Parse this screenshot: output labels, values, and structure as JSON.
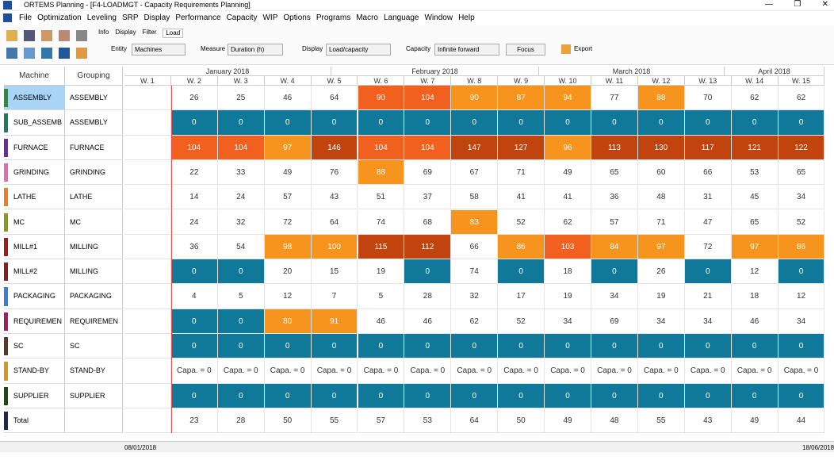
{
  "window": {
    "title": "ORTEMS  Planning - [F4-LOADMGT - Capacity Requirements Planning]"
  },
  "menu": [
    "File",
    "Optimization",
    "Leveling",
    "SRP",
    "Display",
    "Performance",
    "Capacity",
    "WIP",
    "Options",
    "Programs",
    "Macro",
    "Language",
    "Window",
    "Help"
  ],
  "tabs": [
    "Info",
    "Display",
    "Filter",
    "Load"
  ],
  "controls": {
    "entity_label": "Entity",
    "entity": "Machines",
    "measure_label": "Measure",
    "measure": "Duration (h)",
    "display_label": "Display",
    "display": "Load/capacity",
    "capacity_label": "Capacity",
    "capacity": "Infinite forward",
    "focus": "Focus",
    "export": "Export"
  },
  "grid": {
    "headers": [
      "Machine",
      "Grouping"
    ],
    "months": [
      "January 2018",
      "February 2018",
      "March 2018",
      "April 2018"
    ],
    "weeks": [
      "W. 1",
      "W. 2",
      "W. 3",
      "W. 4",
      "W. 5",
      "W. 6",
      "W. 7",
      "W. 8",
      "W. 9",
      "W. 10",
      "W. 11",
      "W. 12",
      "W. 13",
      "W. 14",
      "W. 15"
    ],
    "rows": [
      {
        "machine": "ASSEMBLY",
        "grouping": "ASSEMBLY",
        "swatch": "#2e8b3a",
        "cells": [
          null,
          26,
          25,
          46,
          64,
          90,
          104,
          90,
          87,
          94,
          77,
          88,
          70,
          62,
          62
        ],
        "fills": [
          null,
          null,
          null,
          null,
          null,
          "#f2601f",
          "#f2601f",
          "#f7941d",
          "#f7941d",
          "#f7941d",
          null,
          "#f7941d",
          null,
          null,
          null
        ]
      },
      {
        "machine": "SUB_ASSEMB",
        "grouping": "ASSEMBLY",
        "swatch": "#1f7a5c",
        "cells": [
          null,
          0,
          0,
          0,
          0,
          0,
          0,
          0,
          0,
          0,
          0,
          0,
          0,
          0,
          0
        ],
        "fills": [
          null,
          "#10799a",
          "#10799a",
          "#10799a",
          "#10799a",
          "#10799a",
          "#10799a",
          "#10799a",
          "#10799a",
          "#10799a",
          "#10799a",
          "#10799a",
          "#10799a",
          "#10799a",
          "#10799a"
        ]
      },
      {
        "machine": "FURNACE",
        "grouping": "FURNACE",
        "swatch": "#6a2d9e",
        "cells": [
          null,
          104,
          104,
          97,
          146,
          104,
          104,
          147,
          127,
          96,
          113,
          130,
          117,
          121,
          122
        ],
        "fills": [
          null,
          "#f2601f",
          "#f2601f",
          "#f7941d",
          "#c1440e",
          "#f2601f",
          "#f2601f",
          "#c1440e",
          "#c1440e",
          "#f7941d",
          "#c1440e",
          "#c1440e",
          "#c1440e",
          "#c1440e",
          "#c1440e"
        ]
      },
      {
        "machine": "GRINDING",
        "grouping": "GRINDING",
        "swatch": "#e86bb0",
        "cells": [
          null,
          22,
          33,
          49,
          76,
          88,
          69,
          67,
          71,
          49,
          65,
          60,
          66,
          53,
          65
        ],
        "fills": [
          null,
          null,
          null,
          null,
          null,
          "#f7941d",
          null,
          null,
          null,
          null,
          null,
          null,
          null,
          null,
          null
        ]
      },
      {
        "machine": "LATHE",
        "grouping": "LATHE",
        "swatch": "#ef7d22",
        "cells": [
          null,
          14,
          24,
          57,
          43,
          51,
          37,
          58,
          41,
          41,
          36,
          48,
          31,
          45,
          34
        ],
        "fills": [
          null,
          null,
          null,
          null,
          null,
          null,
          null,
          null,
          null,
          null,
          null,
          null,
          null,
          null,
          null
        ]
      },
      {
        "machine": "MC",
        "grouping": "MC",
        "swatch": "#8a9a1a",
        "cells": [
          null,
          24,
          32,
          72,
          64,
          74,
          68,
          83,
          52,
          62,
          57,
          71,
          47,
          65,
          52
        ],
        "fills": [
          null,
          null,
          null,
          null,
          null,
          null,
          null,
          "#f7941d",
          null,
          null,
          null,
          null,
          null,
          null,
          null
        ]
      },
      {
        "machine": "MILL#1",
        "grouping": "MILLING",
        "swatch": "#a01c1c",
        "cells": [
          null,
          36,
          54,
          98,
          100,
          115,
          112,
          66,
          86,
          103,
          84,
          97,
          72,
          97,
          86
        ],
        "fills": [
          null,
          null,
          null,
          "#f7941d",
          "#f7941d",
          "#c1440e",
          "#c1440e",
          null,
          "#f7941d",
          "#f2601f",
          "#f7941d",
          "#f7941d",
          null,
          "#f7941d",
          "#f7941d"
        ]
      },
      {
        "machine": "MILL#2",
        "grouping": "MILLING",
        "swatch": "#8c1c1c",
        "cells": [
          null,
          0,
          0,
          20,
          15,
          19,
          0,
          74,
          0,
          18,
          0,
          26,
          0,
          12,
          0
        ],
        "fills": [
          null,
          "#10799a",
          "#10799a",
          null,
          null,
          null,
          "#10799a",
          null,
          "#10799a",
          null,
          "#10799a",
          null,
          "#10799a",
          null,
          "#10799a"
        ]
      },
      {
        "machine": "PACKAGING",
        "grouping": "PACKAGING",
        "swatch": "#3a7fd0",
        "cells": [
          null,
          4,
          5,
          12,
          7,
          5,
          28,
          32,
          17,
          19,
          34,
          19,
          21,
          18,
          12
        ],
        "fills": [
          null,
          null,
          null,
          null,
          null,
          null,
          null,
          null,
          null,
          null,
          null,
          null,
          null,
          null,
          null
        ]
      },
      {
        "machine": "REQUIREMEN",
        "grouping": "REQUIREMEN",
        "swatch": "#a02060",
        "cells": [
          null,
          0,
          0,
          80,
          91,
          46,
          46,
          62,
          52,
          34,
          69,
          34,
          34,
          46,
          34
        ],
        "fills": [
          null,
          "#10799a",
          "#10799a",
          "#f7941d",
          "#f7941d",
          null,
          null,
          null,
          null,
          null,
          null,
          null,
          null,
          null,
          null
        ]
      },
      {
        "machine": "SC",
        "grouping": "SC",
        "swatch": "#5a3a2a",
        "cells": [
          null,
          0,
          0,
          0,
          0,
          0,
          0,
          0,
          0,
          0,
          0,
          0,
          0,
          0,
          0
        ],
        "fills": [
          null,
          "#10799a",
          "#10799a",
          "#10799a",
          "#10799a",
          "#10799a",
          "#10799a",
          "#10799a",
          "#10799a",
          "#10799a",
          "#10799a",
          "#10799a",
          "#10799a",
          "#10799a",
          "#10799a"
        ]
      },
      {
        "machine": "STAND-BY",
        "grouping": "STAND-BY",
        "swatch": "#d49a1a",
        "cells": [
          null,
          "Capa. = 0",
          "Capa. = 0",
          "Capa. = 0",
          "Capa. = 0",
          "Capa. = 0",
          "Capa. = 0",
          "Capa. = 0",
          "Capa. = 0",
          "Capa. = 0",
          "Capa. = 0",
          "Capa. = 0",
          "Capa. = 0",
          "Capa. = 0",
          "Capa. = 0"
        ],
        "fills": [
          null,
          null,
          null,
          null,
          null,
          null,
          null,
          null,
          null,
          null,
          null,
          null,
          null,
          null,
          null
        ]
      },
      {
        "machine": "SUPPLIER",
        "grouping": "SUPPLIER",
        "swatch": "#1a4a1a",
        "cells": [
          null,
          0,
          0,
          0,
          0,
          0,
          0,
          0,
          0,
          0,
          0,
          0,
          0,
          0,
          0
        ],
        "fills": [
          null,
          "#10799a",
          "#10799a",
          "#10799a",
          "#10799a",
          "#10799a",
          "#10799a",
          "#10799a",
          "#10799a",
          "#10799a",
          "#10799a",
          "#10799a",
          "#10799a",
          "#10799a",
          "#10799a"
        ]
      },
      {
        "machine": "Total",
        "swatch": "#1a2a4a",
        "cells": [
          null,
          23,
          28,
          50,
          55,
          57,
          53,
          64,
          50,
          49,
          48,
          55,
          43,
          49,
          44
        ],
        "fills": [
          null,
          null,
          null,
          null,
          null,
          null,
          null,
          null,
          null,
          null,
          null,
          null,
          null,
          null,
          null
        ]
      }
    ]
  },
  "status": {
    "start": "08/01/2018",
    "end": "18/06/2018"
  }
}
